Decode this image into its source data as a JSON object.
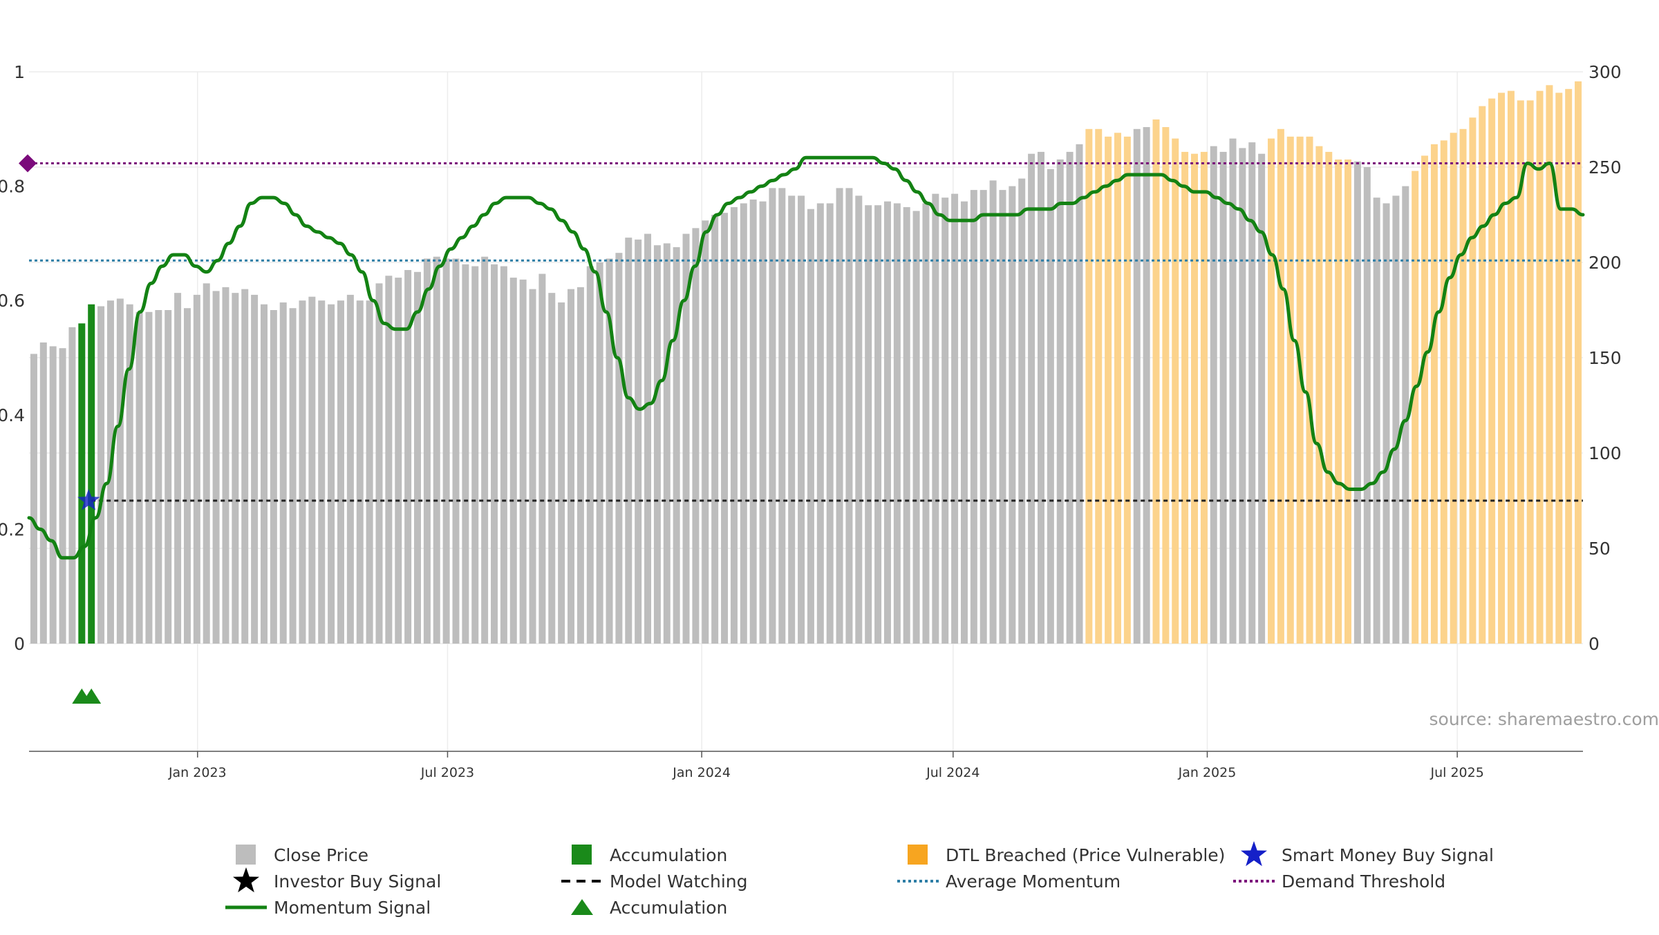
{
  "chart_data": {
    "type": "bar",
    "left_axis": {
      "range": [
        0,
        1
      ],
      "ticks": [
        0,
        0.2,
        0.4,
        0.6,
        0.8,
        1
      ],
      "tick_labels": [
        "0",
        "0.2",
        "0.4",
        "0.6",
        "0.8",
        "1"
      ]
    },
    "right_axis": {
      "range": [
        0,
        300
      ],
      "ticks": [
        0,
        50,
        100,
        150,
        200,
        250,
        300
      ],
      "tick_labels": [
        "0",
        "50",
        "100",
        "150",
        "200",
        "250",
        "300"
      ]
    },
    "x_axis": {
      "start": "2022-09-01",
      "end": "2025-09-30",
      "tick_labels": [
        "Jan 2023",
        "Jul 2023",
        "Jan 2024",
        "Jul 2024",
        "Jan 2025",
        "Jul 2025"
      ]
    },
    "bar_count": 162,
    "close_price": {
      "name": "Close Price",
      "color": "#bdbdbd",
      "dtl_color": "#fcd38c",
      "accum_color": "#1a8a1a",
      "accumulation_bar_indices": [
        5,
        6
      ],
      "dtl_bar_ranges": [
        [
          110,
          114
        ],
        [
          117,
          122
        ],
        [
          129,
          137
        ],
        [
          144,
          161
        ]
      ],
      "keypoints": [
        [
          0,
          152
        ],
        [
          1,
          158
        ],
        [
          2,
          156
        ],
        [
          3,
          155
        ],
        [
          4,
          166
        ],
        [
          5,
          168
        ],
        [
          6,
          178
        ],
        [
          7,
          177
        ],
        [
          8,
          180
        ],
        [
          9,
          181
        ],
        [
          10,
          178
        ],
        [
          11,
          174
        ],
        [
          12,
          174
        ],
        [
          13,
          175
        ],
        [
          14,
          175
        ],
        [
          15,
          184
        ],
        [
          16,
          176
        ],
        [
          17,
          183
        ],
        [
          18,
          189
        ],
        [
          19,
          185
        ],
        [
          20,
          187
        ],
        [
          21,
          184
        ],
        [
          22,
          186
        ],
        [
          23,
          183
        ],
        [
          24,
          178
        ],
        [
          25,
          175
        ],
        [
          26,
          179
        ],
        [
          27,
          176
        ],
        [
          28,
          180
        ],
        [
          29,
          182
        ],
        [
          30,
          180
        ],
        [
          31,
          178
        ],
        [
          32,
          180
        ],
        [
          33,
          183
        ],
        [
          34,
          180
        ],
        [
          35,
          180
        ],
        [
          36,
          189
        ],
        [
          37,
          193
        ],
        [
          38,
          192
        ],
        [
          39,
          196
        ],
        [
          40,
          195
        ],
        [
          41,
          202
        ],
        [
          42,
          203
        ],
        [
          43,
          202
        ],
        [
          44,
          202
        ],
        [
          45,
          199
        ],
        [
          46,
          198
        ],
        [
          47,
          203
        ],
        [
          48,
          199
        ],
        [
          49,
          198
        ],
        [
          50,
          192
        ],
        [
          51,
          191
        ],
        [
          52,
          186
        ],
        [
          53,
          194
        ],
        [
          54,
          184
        ],
        [
          55,
          179
        ],
        [
          56,
          186
        ],
        [
          57,
          187
        ],
        [
          58,
          198
        ],
        [
          59,
          200
        ],
        [
          60,
          202
        ],
        [
          61,
          205
        ],
        [
          62,
          213
        ],
        [
          63,
          212
        ],
        [
          64,
          215
        ],
        [
          65,
          209
        ],
        [
          66,
          210
        ],
        [
          67,
          208
        ],
        [
          68,
          215
        ],
        [
          69,
          218
        ],
        [
          70,
          222
        ],
        [
          71,
          225
        ],
        [
          72,
          226
        ],
        [
          73,
          229
        ],
        [
          74,
          231
        ],
        [
          75,
          233
        ],
        [
          76,
          232
        ],
        [
          77,
          239
        ],
        [
          78,
          239
        ],
        [
          79,
          235
        ],
        [
          80,
          235
        ],
        [
          81,
          228
        ],
        [
          82,
          231
        ],
        [
          83,
          231
        ],
        [
          84,
          239
        ],
        [
          85,
          239
        ],
        [
          86,
          235
        ],
        [
          87,
          230
        ],
        [
          88,
          230
        ],
        [
          89,
          232
        ],
        [
          90,
          231
        ],
        [
          91,
          229
        ],
        [
          92,
          227
        ],
        [
          93,
          231
        ],
        [
          94,
          236
        ],
        [
          95,
          234
        ],
        [
          96,
          236
        ],
        [
          97,
          232
        ],
        [
          98,
          238
        ],
        [
          99,
          238
        ],
        [
          100,
          243
        ],
        [
          101,
          238
        ],
        [
          102,
          240
        ],
        [
          103,
          244
        ],
        [
          104,
          257
        ],
        [
          105,
          258
        ],
        [
          106,
          249
        ],
        [
          107,
          254
        ],
        [
          108,
          258
        ],
        [
          109,
          262
        ],
        [
          110,
          270
        ],
        [
          111,
          270
        ],
        [
          112,
          266
        ],
        [
          113,
          268
        ],
        [
          114,
          266
        ],
        [
          115,
          270
        ],
        [
          116,
          271
        ],
        [
          117,
          275
        ],
        [
          118,
          271
        ],
        [
          119,
          265
        ],
        [
          120,
          258
        ],
        [
          121,
          257
        ],
        [
          122,
          258
        ],
        [
          123,
          261
        ],
        [
          124,
          258
        ],
        [
          125,
          265
        ],
        [
          126,
          260
        ],
        [
          127,
          263
        ],
        [
          128,
          257
        ],
        [
          129,
          265
        ],
        [
          130,
          270
        ],
        [
          131,
          266
        ],
        [
          132,
          266
        ],
        [
          133,
          266
        ],
        [
          134,
          261
        ],
        [
          135,
          258
        ],
        [
          136,
          254
        ],
        [
          137,
          254
        ],
        [
          138,
          253
        ],
        [
          139,
          250
        ],
        [
          140,
          234
        ],
        [
          141,
          231
        ],
        [
          142,
          235
        ],
        [
          143,
          240
        ],
        [
          144,
          248
        ],
        [
          145,
          256
        ],
        [
          146,
          262
        ],
        [
          147,
          264
        ],
        [
          148,
          268
        ],
        [
          149,
          270
        ],
        [
          150,
          276
        ],
        [
          151,
          282
        ],
        [
          152,
          286
        ],
        [
          153,
          289
        ],
        [
          154,
          290
        ],
        [
          155,
          285
        ],
        [
          156,
          285
        ],
        [
          157,
          290
        ],
        [
          158,
          293
        ],
        [
          159,
          289
        ],
        [
          160,
          291
        ],
        [
          161,
          295
        ]
      ]
    },
    "momentum": {
      "name": "Momentum Signal",
      "color": "#138213",
      "keypoints": [
        [
          0,
          0.22
        ],
        [
          1,
          0.2
        ],
        [
          2,
          0.18
        ],
        [
          3,
          0.15
        ],
        [
          4,
          0.15
        ],
        [
          5,
          0.17
        ],
        [
          6,
          0.22
        ],
        [
          7,
          0.28
        ],
        [
          8,
          0.38
        ],
        [
          9,
          0.48
        ],
        [
          10,
          0.58
        ],
        [
          11,
          0.63
        ],
        [
          12,
          0.66
        ],
        [
          13,
          0.68
        ],
        [
          14,
          0.68
        ],
        [
          15,
          0.66
        ],
        [
          16,
          0.65
        ],
        [
          17,
          0.67
        ],
        [
          18,
          0.7
        ],
        [
          19,
          0.73
        ],
        [
          20,
          0.77
        ],
        [
          21,
          0.78
        ],
        [
          22,
          0.78
        ],
        [
          23,
          0.77
        ],
        [
          24,
          0.75
        ],
        [
          25,
          0.73
        ],
        [
          26,
          0.72
        ],
        [
          27,
          0.71
        ],
        [
          28,
          0.7
        ],
        [
          29,
          0.68
        ],
        [
          30,
          0.65
        ],
        [
          31,
          0.6
        ],
        [
          32,
          0.56
        ],
        [
          33,
          0.55
        ],
        [
          34,
          0.55
        ],
        [
          35,
          0.58
        ],
        [
          36,
          0.62
        ],
        [
          37,
          0.66
        ],
        [
          38,
          0.69
        ],
        [
          39,
          0.71
        ],
        [
          40,
          0.73
        ],
        [
          41,
          0.75
        ],
        [
          42,
          0.77
        ],
        [
          43,
          0.78
        ],
        [
          44,
          0.78
        ],
        [
          45,
          0.78
        ],
        [
          46,
          0.77
        ],
        [
          47,
          0.76
        ],
        [
          48,
          0.74
        ],
        [
          49,
          0.72
        ],
        [
          50,
          0.69
        ],
        [
          51,
          0.65
        ],
        [
          52,
          0.58
        ],
        [
          53,
          0.5
        ],
        [
          54,
          0.43
        ],
        [
          55,
          0.41
        ],
        [
          56,
          0.42
        ],
        [
          57,
          0.46
        ],
        [
          58,
          0.53
        ],
        [
          59,
          0.6
        ],
        [
          60,
          0.66
        ],
        [
          61,
          0.72
        ],
        [
          62,
          0.75
        ],
        [
          63,
          0.77
        ],
        [
          64,
          0.78
        ],
        [
          65,
          0.79
        ],
        [
          66,
          0.8
        ],
        [
          67,
          0.81
        ],
        [
          68,
          0.82
        ],
        [
          69,
          0.83
        ],
        [
          70,
          0.85
        ],
        [
          71,
          0.85
        ],
        [
          72,
          0.85
        ],
        [
          73,
          0.85
        ],
        [
          74,
          0.85
        ],
        [
          75,
          0.85
        ],
        [
          76,
          0.85
        ],
        [
          77,
          0.84
        ],
        [
          78,
          0.83
        ],
        [
          79,
          0.81
        ],
        [
          80,
          0.79
        ],
        [
          81,
          0.77
        ],
        [
          82,
          0.75
        ],
        [
          83,
          0.74
        ],
        [
          84,
          0.74
        ],
        [
          85,
          0.74
        ],
        [
          86,
          0.75
        ],
        [
          87,
          0.75
        ],
        [
          88,
          0.75
        ],
        [
          89,
          0.75
        ],
        [
          90,
          0.76
        ],
        [
          91,
          0.76
        ],
        [
          92,
          0.76
        ],
        [
          93,
          0.77
        ],
        [
          94,
          0.77
        ],
        [
          95,
          0.78
        ],
        [
          96,
          0.79
        ],
        [
          97,
          0.8
        ],
        [
          98,
          0.81
        ],
        [
          99,
          0.82
        ],
        [
          100,
          0.82
        ],
        [
          101,
          0.82
        ],
        [
          102,
          0.82
        ],
        [
          103,
          0.81
        ],
        [
          104,
          0.8
        ],
        [
          105,
          0.79
        ],
        [
          106,
          0.79
        ],
        [
          107,
          0.78
        ],
        [
          108,
          0.77
        ],
        [
          109,
          0.76
        ],
        [
          110,
          0.74
        ],
        [
          111,
          0.72
        ],
        [
          112,
          0.68
        ],
        [
          113,
          0.62
        ],
        [
          114,
          0.53
        ],
        [
          115,
          0.44
        ],
        [
          116,
          0.35
        ],
        [
          117,
          0.3
        ],
        [
          118,
          0.28
        ],
        [
          119,
          0.27
        ],
        [
          120,
          0.27
        ],
        [
          121,
          0.28
        ],
        [
          122,
          0.3
        ],
        [
          123,
          0.34
        ],
        [
          124,
          0.39
        ],
        [
          125,
          0.45
        ],
        [
          126,
          0.51
        ],
        [
          127,
          0.58
        ],
        [
          128,
          0.64
        ],
        [
          129,
          0.68
        ],
        [
          130,
          0.71
        ],
        [
          131,
          0.73
        ],
        [
          132,
          0.75
        ],
        [
          133,
          0.77
        ],
        [
          134,
          0.78
        ],
        [
          135,
          0.84
        ],
        [
          136,
          0.83
        ],
        [
          137,
          0.84
        ],
        [
          138,
          0.76
        ],
        [
          139,
          0.76
        ],
        [
          140,
          0.75
        ]
      ]
    },
    "average_momentum": {
      "name": "Average Momentum",
      "value": 0.67,
      "color": "#2e7ea6"
    },
    "demand_threshold": {
      "name": "Demand Threshold",
      "value": 0.84,
      "color": "#7b0a7b"
    },
    "model_watching": {
      "name": "Model Watching",
      "value": 0.25,
      "color": "#222222"
    },
    "smart_money_buy_signal": {
      "name": "Smart Money Buy Signal",
      "bar_index": 6,
      "value": 0.25,
      "color": "#1520c8"
    },
    "accumulation_markers": {
      "name": "Accumulation",
      "bar_indices": [
        5,
        6
      ],
      "color": "#1a8a1a"
    },
    "legend": {
      "placement": "bottom",
      "items": [
        {
          "label": "Close Price",
          "symbol": "square",
          "color": "#bdbdbd"
        },
        {
          "label": "Accumulation",
          "symbol": "square",
          "color": "#1a8a1a"
        },
        {
          "label": "DTL Breached (Price Vulnerable)",
          "symbol": "square",
          "color": "#f7a520"
        },
        {
          "label": "Smart Money Buy Signal",
          "symbol": "star",
          "color": "#1520c8"
        },
        {
          "label": "Investor Buy Signal",
          "symbol": "star",
          "color": "#000000"
        },
        {
          "label": "Model Watching",
          "symbol": "dash",
          "color": "#000000"
        },
        {
          "label": "Average Momentum",
          "symbol": "dot",
          "color": "#2e7ea6"
        },
        {
          "label": "Demand Threshold",
          "symbol": "dot",
          "color": "#7b0a7b"
        },
        {
          "label": "Momentum Signal",
          "symbol": "line",
          "color": "#138213"
        },
        {
          "label": "Accumulation",
          "symbol": "triangle",
          "color": "#1a8a1a"
        }
      ]
    },
    "watermark": "source: sharemaestro.com"
  }
}
